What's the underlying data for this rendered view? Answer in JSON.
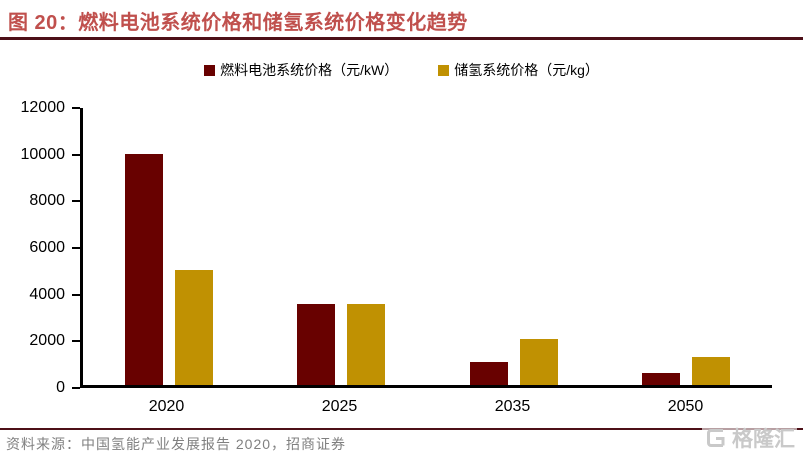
{
  "title": "图 20：燃料电池系统价格和储氢系统价格变化趋势",
  "chart_data": {
    "type": "bar",
    "categories": [
      "2020",
      "2025",
      "2035",
      "2050"
    ],
    "series": [
      {
        "key": "fuel-cell-system-price",
        "name": "燃料电池系统价格（元/kW）",
        "color": "#680100",
        "values": [
          10000,
          3500,
          1000,
          500
        ]
      },
      {
        "key": "hydrogen-storage-system-price",
        "name": "储氢系统价格（元/kg）",
        "color": "#C09102",
        "values": [
          5000,
          3500,
          2000,
          1200
        ]
      }
    ],
    "ylim": [
      0,
      12000
    ],
    "yticks": [
      0,
      2000,
      4000,
      6000,
      8000,
      10000,
      12000
    ],
    "grid": false,
    "legend_position": "top-center",
    "xlabel": "",
    "ylabel": ""
  },
  "source_note": "资料来源：中国氢能产业发展报告 2020，招商证券",
  "watermark": {
    "text": "格隆汇",
    "icon": "gelonghui-g-logo",
    "color": "#C9C9C9"
  },
  "colors": {
    "title": "#C0504D",
    "rule": "#4D1018",
    "axis": "#000000",
    "source_text": "#808080"
  }
}
